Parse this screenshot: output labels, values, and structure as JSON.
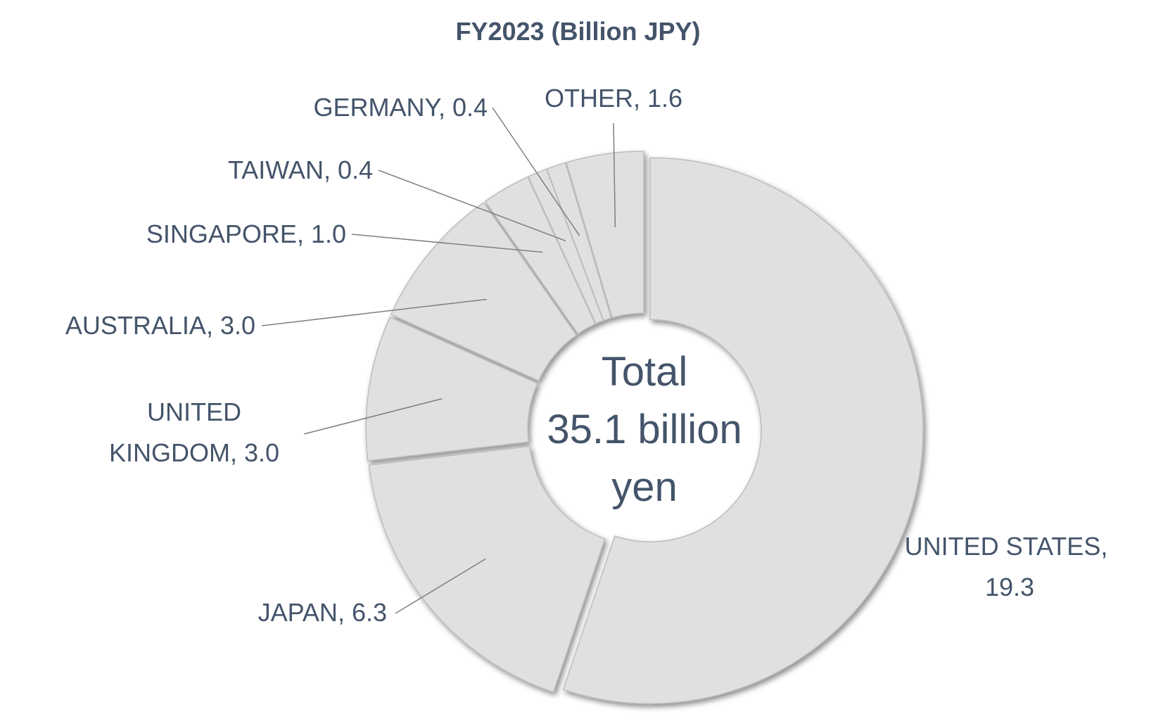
{
  "chart_data": {
    "type": "pie",
    "title": "FY2023 (Billion JPY)",
    "center_text": [
      "Total",
      "35.1 billion",
      "yen"
    ],
    "categories": [
      "UNITED STATES",
      "JAPAN",
      "UNITED KINGDOM",
      "AUSTRALIA",
      "SINGAPORE",
      "TAIWAN",
      "GERMANY",
      "OTHER"
    ],
    "values": [
      19.3,
      6.3,
      3.0,
      3.0,
      1.0,
      0.4,
      0.4,
      1.6
    ],
    "value_labels": [
      "19.3",
      "6.3",
      "3.0",
      "3.0",
      "1.0",
      "0.4",
      "0.4",
      "1.6"
    ],
    "label_separator": ", ",
    "color": "#e0e0e0"
  }
}
